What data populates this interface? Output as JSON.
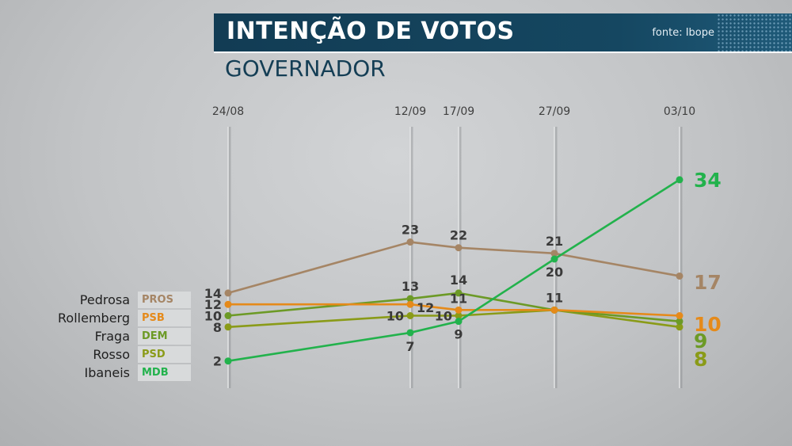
{
  "header": {
    "title": "INTENÇÃO DE VOTOS",
    "source": "fonte: Ibope",
    "subtitle": "GOVERNADOR"
  },
  "legend": [
    {
      "name": "Pedrosa",
      "party": "PROS",
      "color": "#a58565"
    },
    {
      "name": "Rollemberg",
      "party": "PSB",
      "color": "#e58a1a"
    },
    {
      "name": "Fraga",
      "party": "DEM",
      "color": "#6c9a26"
    },
    {
      "name": "Rosso",
      "party": "PSD",
      "color": "#8a9b18"
    },
    {
      "name": "Ibaneis",
      "party": "MDB",
      "color": "#22b24c"
    }
  ],
  "chart_data": {
    "type": "line",
    "x": [
      "24/08",
      "12/09",
      "17/09",
      "27/09",
      "03/10"
    ],
    "series": [
      {
        "name": "Pedrosa",
        "party": "PROS",
        "color": "#a58565",
        "values": [
          14,
          23,
          22,
          21,
          17
        ]
      },
      {
        "name": "Rollemberg",
        "party": "PSB",
        "color": "#e58a1a",
        "values": [
          12,
          12,
          11,
          11,
          10
        ]
      },
      {
        "name": "Fraga",
        "party": "DEM",
        "color": "#6c9a26",
        "values": [
          10,
          13,
          14,
          11,
          9
        ]
      },
      {
        "name": "Rosso",
        "party": "PSD",
        "color": "#8a9b18",
        "values": [
          8,
          10,
          10,
          11,
          8
        ]
      },
      {
        "name": "Ibaneis",
        "party": "MDB",
        "color": "#22b24c",
        "values": [
          2,
          7,
          9,
          20,
          34
        ]
      }
    ],
    "grid": true
  }
}
